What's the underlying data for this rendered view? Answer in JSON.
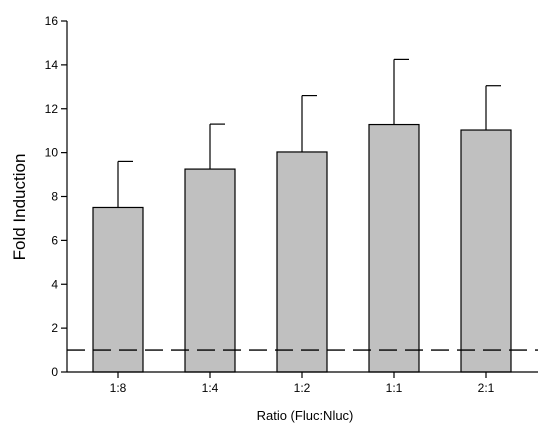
{
  "chart_data": {
    "type": "bar",
    "categories": [
      "1:8",
      "1:4",
      "1:2",
      "1:1",
      "2:1"
    ],
    "values": [
      7.5,
      9.25,
      10.03,
      11.28,
      11.03
    ],
    "error_upper": [
      9.6,
      11.3,
      12.6,
      14.25,
      13.05
    ],
    "xlabel": "Ratio (Fluc:Nluc)",
    "ylabel": "Fold Induction",
    "ylim": [
      0,
      16
    ],
    "yticks": [
      "0",
      "2",
      "4",
      "6",
      "8",
      "10",
      "12",
      "14",
      "16"
    ],
    "reference_line": 1,
    "grid": false,
    "bar_color": "#c0c0c0",
    "edge_color": "#000000"
  }
}
